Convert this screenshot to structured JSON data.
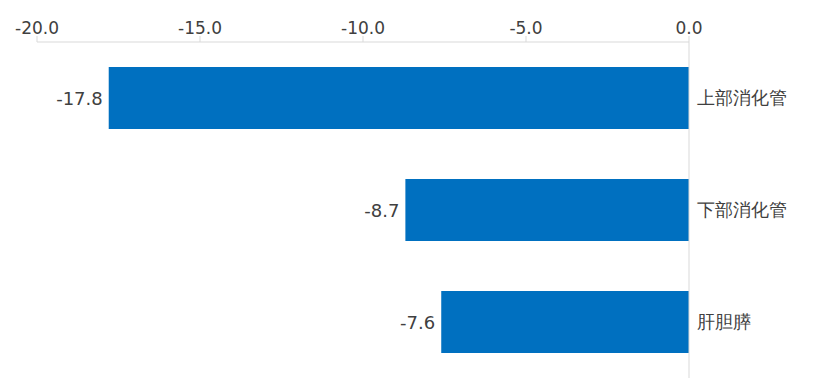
{
  "chart_data": {
    "type": "bar",
    "orientation": "horizontal",
    "categories": [
      "上部消化管",
      "下部消化管",
      "肝胆膵"
    ],
    "values": [
      -17.8,
      -8.7,
      -7.6
    ],
    "color": "#0070c0",
    "xlim": [
      -20,
      0
    ],
    "xticks": [
      {
        "value": -20,
        "label": "-20.0"
      },
      {
        "value": -15,
        "label": "-15.0"
      },
      {
        "value": -10,
        "label": "-10.0"
      },
      {
        "value": -5,
        "label": "-5.0"
      },
      {
        "value": 0,
        "label": "0.0"
      }
    ],
    "grid": false,
    "data_labels": true
  }
}
